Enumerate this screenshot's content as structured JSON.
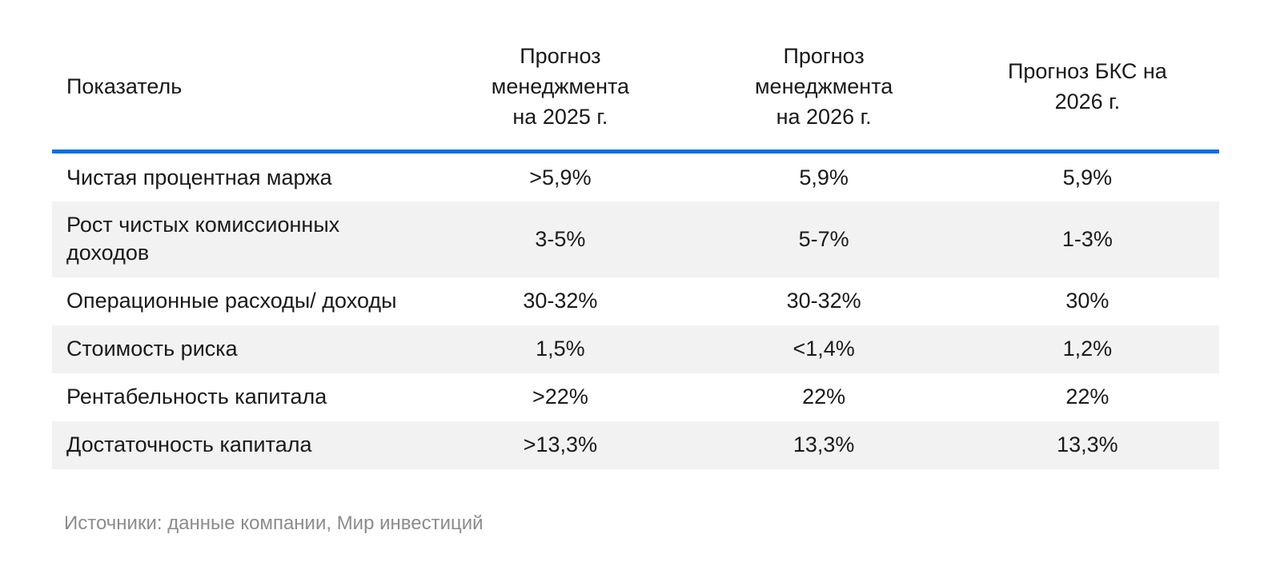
{
  "table": {
    "columns": [
      "Показатель",
      "Прогноз менеджмента на 2025 г.",
      "Прогноз менеджмента на 2026 г.",
      "Прогноз БКС на 2026 г."
    ],
    "rows": [
      {
        "label": "Чистая процентная маржа",
        "values": [
          ">5,9%",
          "5,9%",
          "5,9%"
        ]
      },
      {
        "label": "Рост чистых комиссионных доходов",
        "values": [
          "3-5%",
          "5-7%",
          "1-3%"
        ]
      },
      {
        "label": "Операционные расходы/ доходы",
        "values": [
          "30-32%",
          "30-32%",
          "30%"
        ]
      },
      {
        "label": "Стоимость риска",
        "values": [
          "1,5%",
          "<1,4%",
          "1,2%"
        ]
      },
      {
        "label": "Рентабельность капитала",
        "values": [
          ">22%",
          "22%",
          "22%"
        ]
      },
      {
        "label": "Достаточность капитала",
        "values": [
          ">13,3%",
          "13,3%",
          "13,3%"
        ]
      }
    ]
  },
  "footer": {
    "source_note": "Источники: данные компании, Мир инвестиций"
  },
  "colors": {
    "accent_blue": "#0a6ee6",
    "row_alt_bg": "#f2f2f2",
    "text": "#1a1a1a",
    "source_text": "#8c8c8c"
  },
  "chart_data": {
    "type": "table",
    "title": "",
    "columns": [
      "Показатель",
      "Прогноз менеджмента на 2025 г.",
      "Прогноз менеджмента на 2026 г.",
      "Прогноз БКС на 2026 г."
    ],
    "rows": [
      [
        "Чистая процентная маржа",
        ">5,9%",
        "5,9%",
        "5,9%"
      ],
      [
        "Рост чистых комиссионных доходов",
        "3-5%",
        "5-7%",
        "1-3%"
      ],
      [
        "Операционные расходы/ доходы",
        "30-32%",
        "30-32%",
        "30%"
      ],
      [
        "Стоимость риска",
        "1,5%",
        "<1,4%",
        "1,2%"
      ],
      [
        "Рентабельность капитала",
        ">22%",
        "22%",
        "22%"
      ],
      [
        "Достаточность капитала",
        ">13,3%",
        "13,3%",
        "13,3%"
      ]
    ],
    "source": "Источники: данные компании, Мир инвестиций"
  }
}
